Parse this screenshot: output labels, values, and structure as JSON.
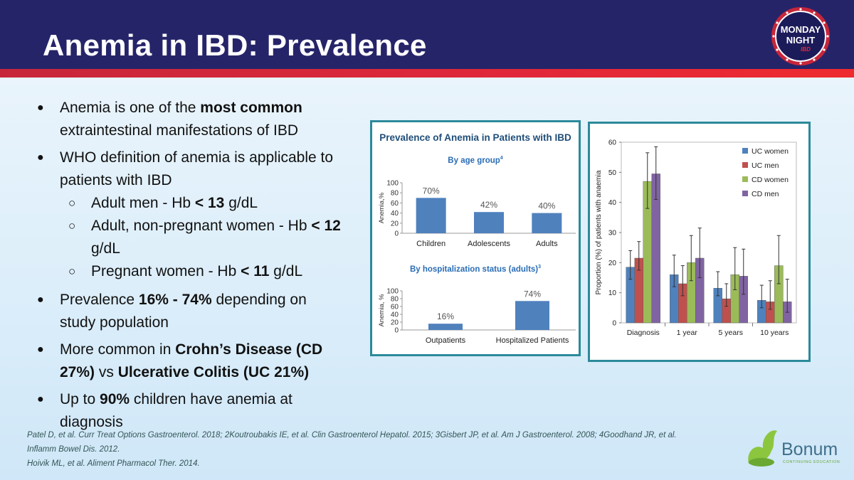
{
  "slide": {
    "title": "Anemia in IBD: Prevalence",
    "logo_text": {
      "line1": "MONDAY",
      "line2": "NIGHT",
      "line3": "IBD"
    },
    "bonum_logo": {
      "name": "Bonum",
      "tagline": "CONTINUING EDUCATION"
    }
  },
  "bullets": [
    {
      "pre": "Anemia is one of the ",
      "bold": "most common",
      "post": " extraintestinal manifestations of IBD"
    },
    {
      "pre": "WHO definition of anemia is applicable to patients with IBD",
      "bold": "",
      "post": ""
    }
  ],
  "subbullets": [
    {
      "pre": "Adult men -  Hb ",
      "bold": "< 13",
      "post": " g/dL"
    },
    {
      "pre": "Adult, non-pregnant women - Hb ",
      "bold": "< 12",
      "post": " g/dL"
    },
    {
      "pre": "Pregnant women - Hb ",
      "bold": "< 11",
      "post": " g/dL"
    }
  ],
  "bullets2": [
    {
      "pre": "Prevalence ",
      "bold": "16% - 74%",
      "post": " depending on study population"
    },
    {
      "pre": "More common in ",
      "bold": "Crohn’s Disease (CD 27%)",
      "mid": " vs ",
      "bold2": "Ulcerative Colitis (UC 21%)",
      "post": ""
    },
    {
      "pre": "Up to ",
      "bold": "90%",
      "post": " children have anemia at diagnosis"
    }
  ],
  "references": [
    "Patel D, et al. Curr Treat Options Gastroenterol. 2018; 2Koutroubakis IE, et al. Clin Gastroenterol Hepatol. 2015; 3Gisbert JP, et al. Am J Gastroenterol. 2008; 4Goodhand JR, et al.",
    "Inflamm Bowel Dis. 2012.",
    "Hoivik ML, et al. Aliment Pharmacol Ther. 2014."
  ],
  "colors": {
    "header": "#262469",
    "stripe": "#e0283a",
    "bar_blue": "#4f81bd",
    "uc_women": "#4f81bd",
    "uc_men": "#c0504d",
    "cd_women": "#9bbb59",
    "cd_men": "#8064a2",
    "panel_border": "#2b8a9a",
    "panel_title": "#1f4e79",
    "subtitle": "#2a6db5"
  },
  "chart_data": [
    {
      "type": "bar",
      "title": "Prevalence of Anemia in Patients with IBD",
      "subtitle": "By age group",
      "subtitle_sup": "4",
      "ylabel": "Anemia,%",
      "ylim": [
        0,
        100
      ],
      "yticks": [
        0,
        20,
        40,
        60,
        80,
        100
      ],
      "categories": [
        "Children",
        "Adolescents",
        "Adults"
      ],
      "values": [
        70,
        42,
        40
      ],
      "data_labels": [
        "70%",
        "42%",
        "40%"
      ]
    },
    {
      "type": "bar",
      "subtitle": "By hospitalization status (adults)",
      "subtitle_sup": "3",
      "ylabel": "Anemia, %",
      "ylim": [
        0,
        100
      ],
      "yticks": [
        0,
        20,
        40,
        60,
        80,
        100
      ],
      "categories": [
        "Outpatients",
        "Hospitalized Patients"
      ],
      "values": [
        16,
        74
      ],
      "data_labels": [
        "16%",
        "74%"
      ]
    },
    {
      "type": "bar",
      "ylabel": "Proportion (%) of patients with anaemia",
      "ylim": [
        0,
        60
      ],
      "yticks": [
        0,
        10,
        20,
        30,
        40,
        50,
        60
      ],
      "categories": [
        "Diagnosis",
        "1 year",
        "5 years",
        "10 years"
      ],
      "legend_position": "top-right",
      "series": [
        {
          "name": "UC women",
          "values": [
            18.5,
            16.0,
            11.5,
            7.5
          ],
          "err_low": [
            14.5,
            12.0,
            9.0,
            5.0
          ],
          "err_high": [
            24.0,
            22.5,
            17.0,
            12.5
          ]
        },
        {
          "name": "UC men",
          "values": [
            21.5,
            13.0,
            8.0,
            7.0
          ],
          "err_low": [
            17.5,
            9.0,
            5.5,
            4.5
          ],
          "err_high": [
            27.0,
            19.0,
            13.0,
            14.0
          ]
        },
        {
          "name": "CD women",
          "values": [
            47.0,
            20.0,
            16.0,
            19.0
          ],
          "err_low": [
            38.0,
            14.0,
            11.0,
            13.0
          ],
          "err_high": [
            56.5,
            29.0,
            25.0,
            29.0
          ]
        },
        {
          "name": "CD men",
          "values": [
            49.5,
            21.5,
            15.5,
            7.0
          ],
          "err_low": [
            41.0,
            15.0,
            9.5,
            3.5
          ],
          "err_high": [
            58.5,
            31.5,
            24.5,
            14.5
          ]
        }
      ]
    }
  ]
}
